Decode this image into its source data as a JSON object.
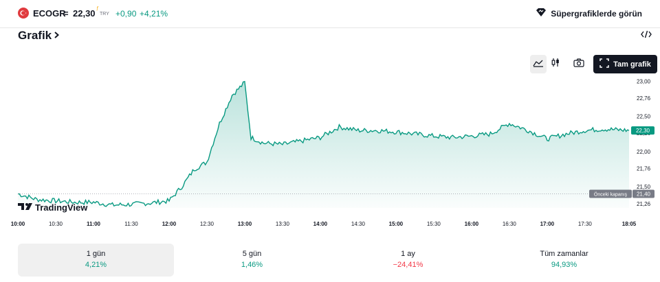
{
  "ticker": {
    "symbol": "ECOGR",
    "separator": "=",
    "price": "22,30",
    "price_marker": "ƒ",
    "currency": "TRY",
    "change": "+0,90",
    "change_pct": "+4,21%"
  },
  "header": {
    "supergraph_label": "Süpergrafiklerde görün",
    "chart_title": "Grafik",
    "embed_icon": "code-icon"
  },
  "toolbar": {
    "area_icon": "area-chart-icon",
    "candle_icon": "candlestick-icon",
    "camera_icon": "camera-icon",
    "fullscreen_label": "Tam grafik"
  },
  "colors": {
    "line": "#089981",
    "up": "#089981",
    "down": "#f23645",
    "dark": "#131722"
  },
  "chart_data": {
    "type": "area",
    "x_tick_labels": [
      "10:00",
      "10:30",
      "11:00",
      "11:30",
      "12:00",
      "12:30",
      "13:00",
      "13:30",
      "14:00",
      "14:30",
      "15:00",
      "15:30",
      "16:00",
      "16:30",
      "17:00",
      "17:30",
      "18:05"
    ],
    "y_tick_labels": [
      "23,00",
      "22,76",
      "22,50",
      "22,26",
      "22,00",
      "21,76",
      "21,50",
      "21,26"
    ],
    "ylim": [
      21.2,
      23.1
    ],
    "current_label": "22,30",
    "current_value": 22.3,
    "prev_close_label": "Önceki kapanış",
    "prev_close_value_label": "21,40",
    "prev_close_value": 21.4,
    "x": [
      "10:00",
      "10:15",
      "10:30",
      "10:45",
      "11:00",
      "11:15",
      "11:30",
      "11:45",
      "12:00",
      "12:10",
      "12:20",
      "12:30",
      "12:40",
      "12:50",
      "13:00",
      "13:05",
      "13:15",
      "13:30",
      "13:45",
      "14:00",
      "14:15",
      "14:30",
      "14:45",
      "15:00",
      "15:15",
      "15:30",
      "15:45",
      "16:00",
      "16:15",
      "16:30",
      "16:45",
      "17:00",
      "17:15",
      "17:30",
      "17:45",
      "18:05"
    ],
    "values": [
      21.4,
      21.32,
      21.3,
      21.28,
      21.28,
      21.24,
      21.25,
      21.27,
      21.3,
      21.5,
      21.75,
      21.85,
      22.4,
      22.8,
      22.98,
      22.2,
      22.12,
      22.1,
      22.15,
      22.2,
      22.35,
      22.3,
      22.3,
      22.28,
      22.25,
      22.22,
      22.2,
      22.22,
      22.25,
      22.4,
      22.3,
      22.18,
      22.25,
      22.3,
      22.32,
      22.3
    ]
  },
  "tradingview_logo": "TradingView",
  "periods": [
    {
      "label": "1 gün",
      "value": "4,21%",
      "trend": "up"
    },
    {
      "label": "5 gün",
      "value": "1,46%",
      "trend": "up"
    },
    {
      "label": "1 ay",
      "value": "−24,41%",
      "trend": "down"
    },
    {
      "label": "Tüm zamanlar",
      "value": "94,93%",
      "trend": "up"
    }
  ]
}
